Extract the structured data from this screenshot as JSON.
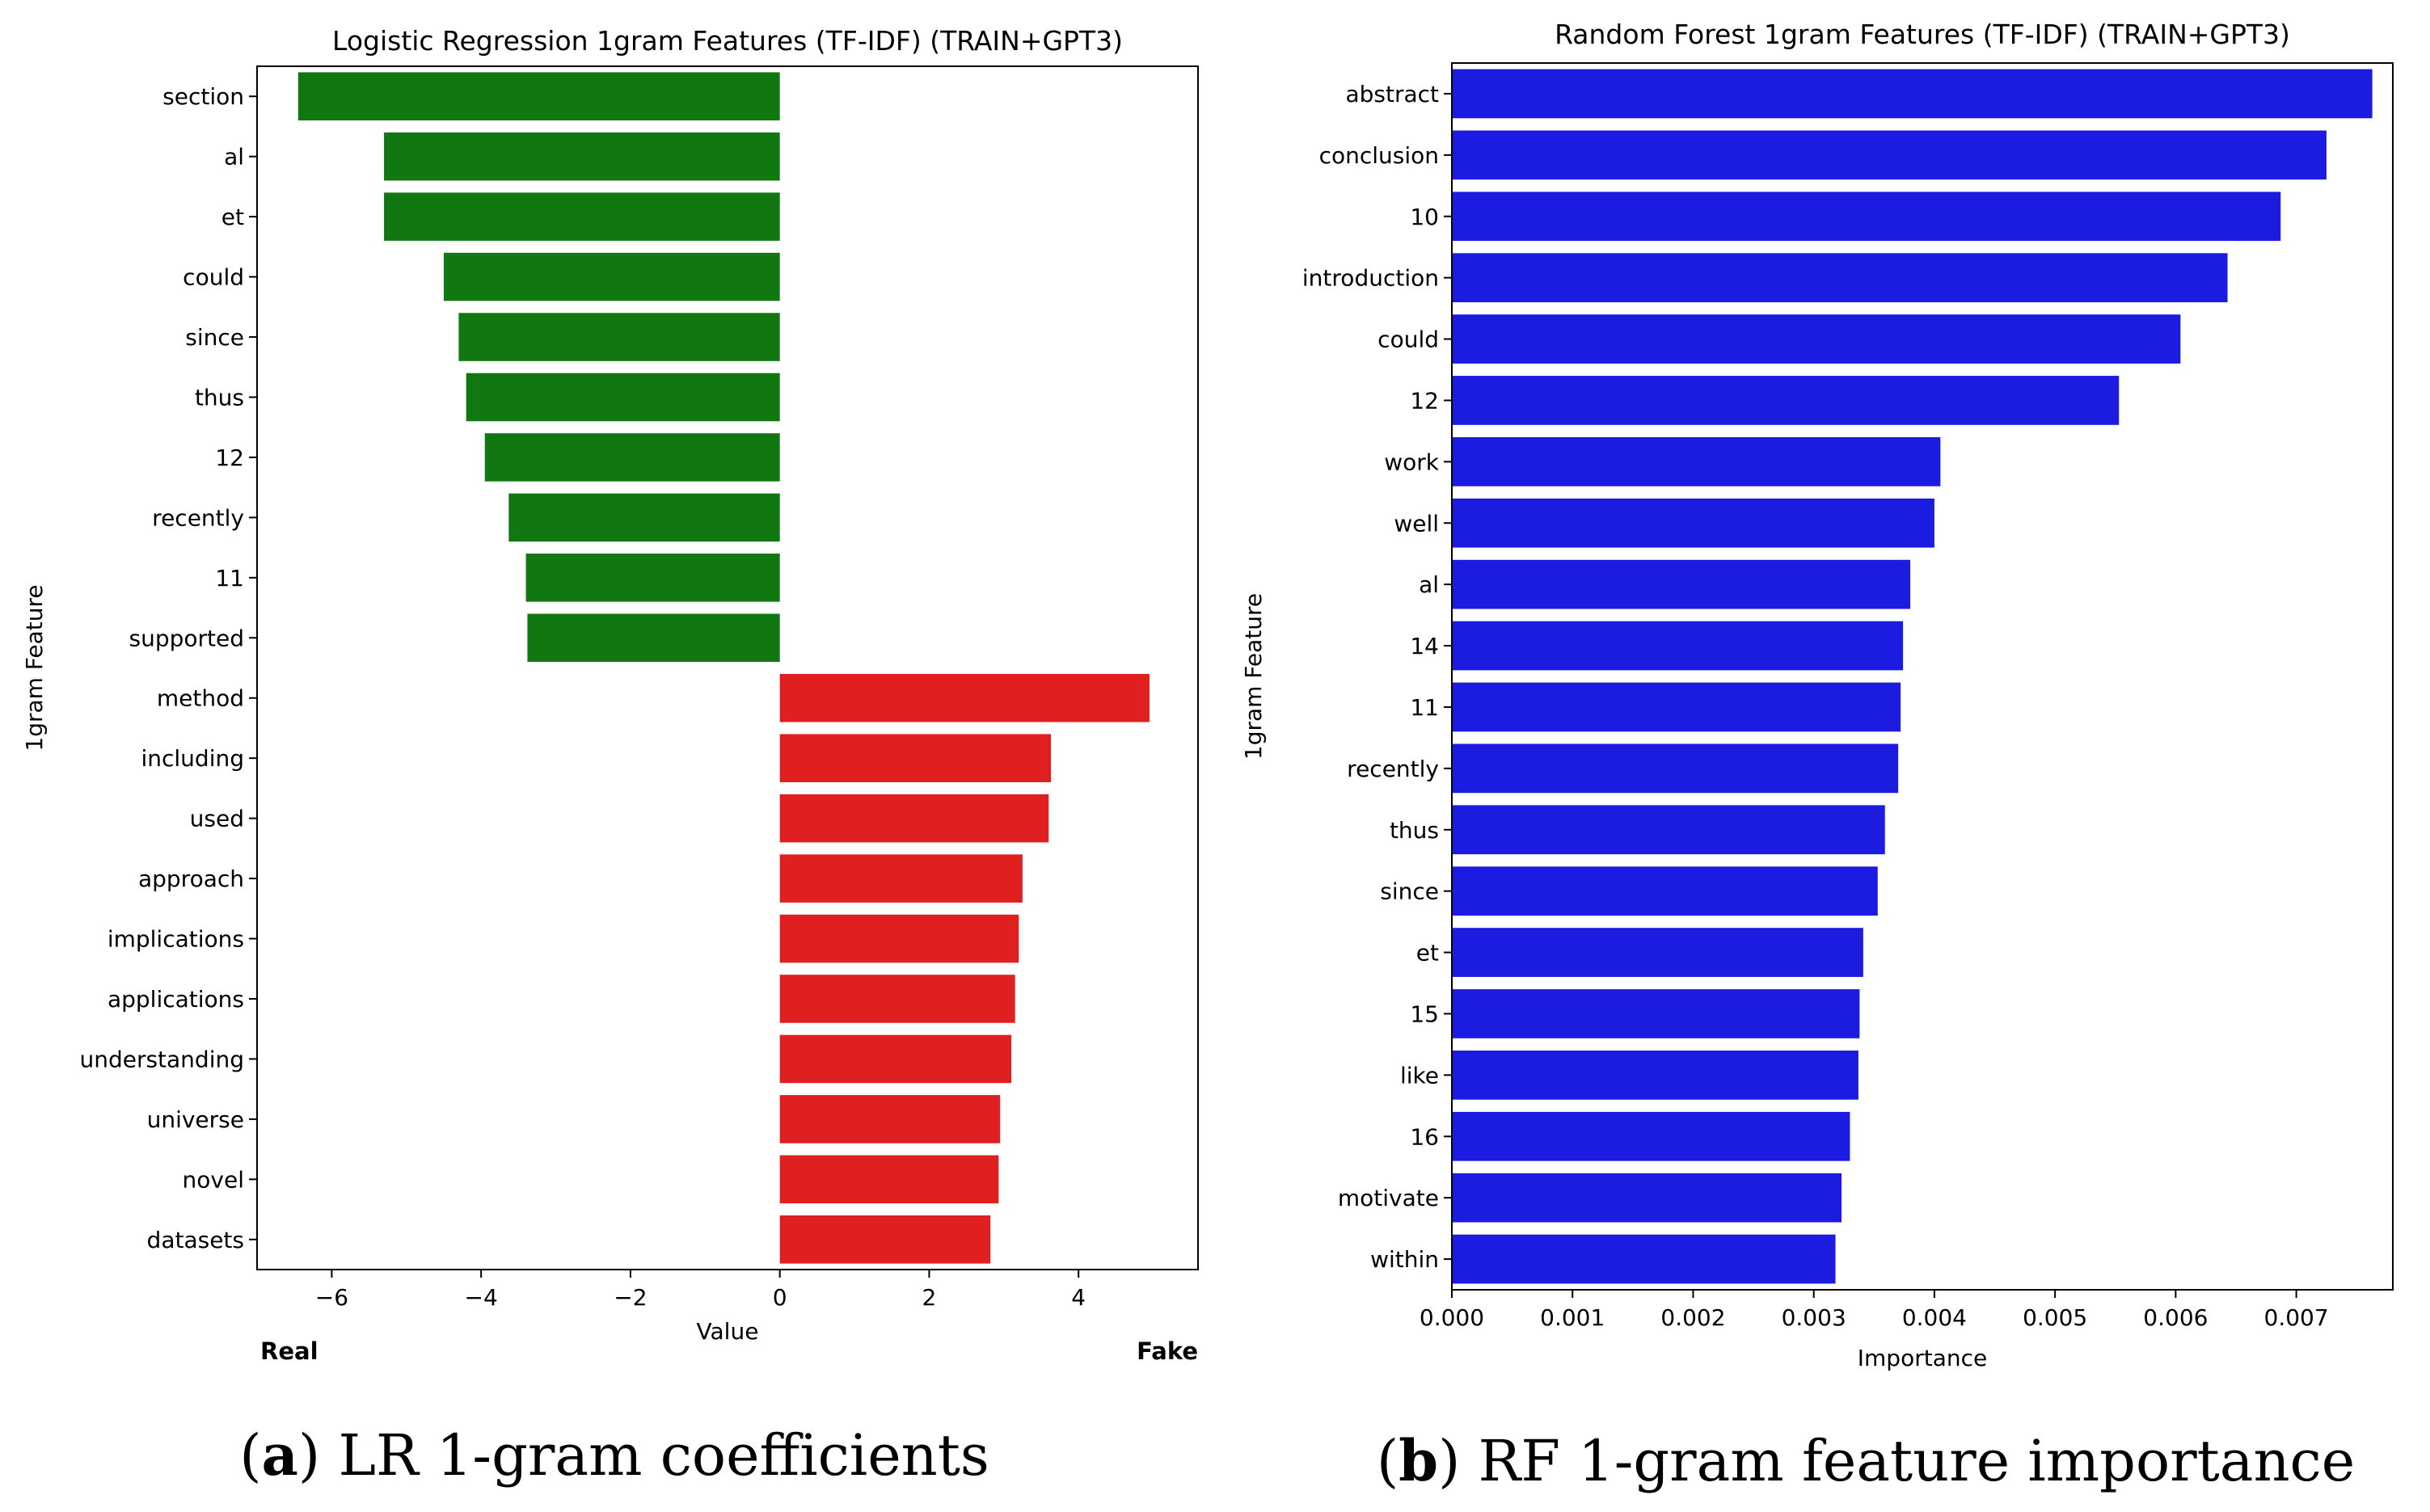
{
  "chart_data": [
    {
      "type": "bar",
      "orientation": "horizontal",
      "title": "Logistic Regression 1gram Features (TF-IDF) (TRAIN+GPT3)",
      "xlabel": "Value",
      "ylabel": "1gram Feature",
      "xlim": [
        -7.0,
        5.6
      ],
      "xticks": [
        -6,
        -4,
        -2,
        0,
        2,
        4
      ],
      "xtick_labels": [
        "−6",
        "−4",
        "−2",
        "0",
        "2",
        "4"
      ],
      "grid": false,
      "left_annotation": "Real",
      "right_annotation": "Fake",
      "caption_letter": "a",
      "caption_text": "LR 1-gram coefficients",
      "categories": [
        "section",
        "al",
        "et",
        "could",
        "since",
        "thus",
        "12",
        "recently",
        "11",
        "supported",
        "method",
        "including",
        "used",
        "approach",
        "implications",
        "applications",
        "understanding",
        "universe",
        "novel",
        "datasets"
      ],
      "values": [
        -6.45,
        -5.3,
        -5.3,
        -4.5,
        -4.3,
        -4.2,
        -3.95,
        -3.63,
        -3.4,
        -3.38,
        4.95,
        3.63,
        3.6,
        3.25,
        3.2,
        3.15,
        3.1,
        2.95,
        2.93,
        2.82
      ],
      "colors": [
        "#117711",
        "#117711",
        "#117711",
        "#117711",
        "#117711",
        "#117711",
        "#117711",
        "#117711",
        "#117711",
        "#117711",
        "#e02020",
        "#e02020",
        "#e02020",
        "#e02020",
        "#e02020",
        "#e02020",
        "#e02020",
        "#e02020",
        "#e02020",
        "#e02020"
      ]
    },
    {
      "type": "bar",
      "orientation": "horizontal",
      "title": "Random Forest 1gram Features (TF-IDF) (TRAIN+GPT3)",
      "xlabel": "Importance",
      "ylabel": "1gram Feature",
      "xlim": [
        0,
        0.0078
      ],
      "xticks": [
        0,
        0.001,
        0.002,
        0.003,
        0.004,
        0.005,
        0.006,
        0.007
      ],
      "xtick_labels": [
        "0.000",
        "0.001",
        "0.002",
        "0.003",
        "0.004",
        "0.005",
        "0.006",
        "0.007"
      ],
      "grid": false,
      "caption_letter": "b",
      "caption_text": "RF 1-gram feature importance",
      "categories": [
        "abstract",
        "conclusion",
        "10",
        "introduction",
        "could",
        "12",
        "work",
        "well",
        "al",
        "14",
        "11",
        "recently",
        "thus",
        "since",
        "et",
        "15",
        "like",
        "16",
        "motivate",
        "within"
      ],
      "values": [
        0.00763,
        0.00725,
        0.00687,
        0.00643,
        0.00604,
        0.00553,
        0.00405,
        0.004,
        0.0038,
        0.00374,
        0.00372,
        0.0037,
        0.00359,
        0.00353,
        0.00341,
        0.00338,
        0.00337,
        0.0033,
        0.00323,
        0.00318
      ],
      "colors": [
        "#1c1ce0"
      ]
    }
  ]
}
